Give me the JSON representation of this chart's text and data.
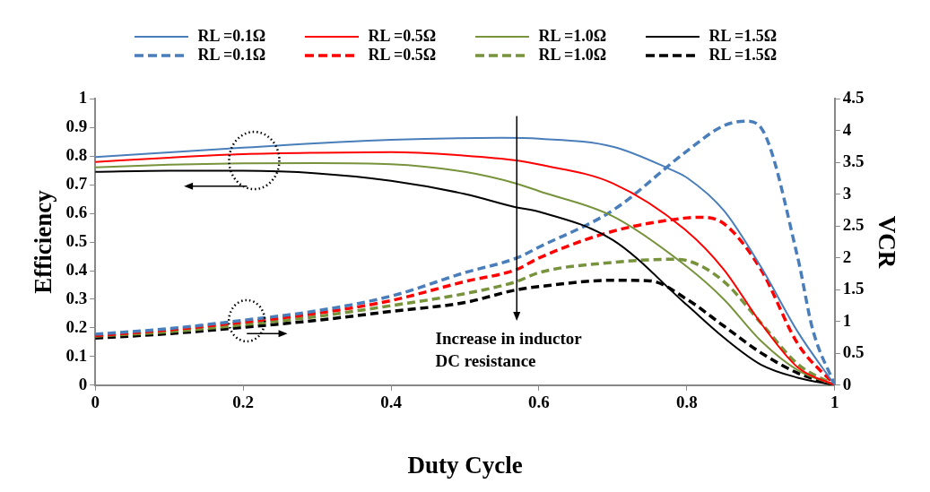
{
  "chart_data": {
    "type": "line",
    "xlabel": "Duty Cycle",
    "ylabel": "Efficiency",
    "y2label": "VCR",
    "xlim": [
      0,
      1
    ],
    "xticks": [
      0,
      0.2,
      0.4,
      0.6,
      0.8,
      1
    ],
    "ylim": [
      0,
      1
    ],
    "yticks": [
      0,
      0.1,
      0.2,
      0.3,
      0.4,
      0.5,
      0.6,
      0.7,
      0.8,
      0.9,
      1
    ],
    "y2lim": [
      0,
      4.5
    ],
    "y2ticks": [
      0,
      0.5,
      1,
      1.5,
      2,
      2.5,
      3,
      3.5,
      4,
      4.5
    ],
    "grid": false,
    "legend": "top",
    "marker": "none",
    "annotations": [
      "Increase in inductor DC resistance"
    ],
    "series": [
      {
        "name": "RL =0.1Ω",
        "color": "#4a7ebb",
        "line_style": "solid",
        "x": [
          0,
          0.2,
          0.4,
          0.55,
          0.6,
          0.7,
          0.776,
          0.8,
          0.85,
          0.9,
          0.95,
          1
        ],
        "values": [
          0.797,
          0.83,
          0.857,
          0.864,
          0.861,
          0.833,
          0.756,
          0.725,
          0.61,
          0.414,
          0.186,
          0
        ]
      },
      {
        "name": "RL =0.5Ω",
        "color": "#ff0000",
        "line_style": "solid",
        "x": [
          0,
          0.1,
          0.2,
          0.3,
          0.4,
          0.5,
          0.57,
          0.6,
          0.7,
          0.8,
          0.85,
          0.9,
          0.95,
          1
        ],
        "values": [
          0.78,
          0.795,
          0.807,
          0.812,
          0.814,
          0.802,
          0.785,
          0.771,
          0.705,
          0.538,
          0.404,
          0.217,
          0.062,
          0
        ]
      },
      {
        "name": "RL =1.0Ω",
        "color": "#77933c",
        "line_style": "solid",
        "x": [
          0,
          0.1,
          0.2,
          0.3,
          0.4,
          0.5,
          0.57,
          0.6,
          0.7,
          0.8,
          0.85,
          0.9,
          0.95,
          1
        ],
        "values": [
          0.761,
          0.77,
          0.775,
          0.776,
          0.772,
          0.745,
          0.704,
          0.678,
          0.59,
          0.414,
          0.3,
          0.155,
          0.052,
          0
        ]
      },
      {
        "name": "RL =1.5Ω",
        "color": "#000000",
        "line_style": "solid",
        "x": [
          0,
          0.1,
          0.2,
          0.3,
          0.4,
          0.5,
          0.57,
          0.6,
          0.7,
          0.8,
          0.85,
          0.9,
          0.95,
          1
        ],
        "values": [
          0.745,
          0.749,
          0.749,
          0.74,
          0.714,
          0.668,
          0.621,
          0.606,
          0.507,
          0.28,
          0.166,
          0.072,
          0.026,
          0
        ]
      },
      {
        "name": "RL =0.1Ω",
        "color": "#4a7ebb",
        "line_style": "dashed",
        "axis": "y2",
        "x": [
          0,
          0.1,
          0.2,
          0.3,
          0.4,
          0.5,
          0.57,
          0.6,
          0.7,
          0.8,
          0.85,
          0.88,
          0.9,
          0.95,
          0.97,
          1
        ],
        "values": [
          0.8,
          0.89,
          1.02,
          1.17,
          1.4,
          1.77,
          2,
          2.17,
          2.75,
          3.68,
          4.08,
          4.15,
          4.05,
          2,
          0.88,
          0
        ]
      },
      {
        "name": "RL =0.5Ω",
        "color": "#ff0000",
        "line_style": "dashed",
        "axis": "y2",
        "x": [
          0,
          0.1,
          0.2,
          0.3,
          0.4,
          0.5,
          0.57,
          0.6,
          0.7,
          0.8,
          0.82,
          0.85,
          0.9,
          0.95,
          1
        ],
        "values": [
          0.78,
          0.87,
          0.99,
          1.13,
          1.33,
          1.63,
          1.82,
          2,
          2.42,
          2.63,
          2.64,
          2.54,
          1.82,
          0.65,
          0
        ]
      },
      {
        "name": "RL =1.0Ω",
        "color": "#77933c",
        "line_style": "dashed",
        "axis": "y2",
        "x": [
          0,
          0.1,
          0.2,
          0.3,
          0.4,
          0.5,
          0.57,
          0.6,
          0.7,
          0.78,
          0.8,
          0.85,
          0.9,
          0.95,
          1
        ],
        "values": [
          0.77,
          0.84,
          0.95,
          1.08,
          1.25,
          1.44,
          1.63,
          1.77,
          1.93,
          1.98,
          1.96,
          1.63,
          0.98,
          0.33,
          0
        ]
      },
      {
        "name": "RL =1.5Ω",
        "color": "#000000",
        "line_style": "dashed",
        "axis": "y2",
        "x": [
          0,
          0.1,
          0.2,
          0.3,
          0.4,
          0.5,
          0.57,
          0.6,
          0.7,
          0.75,
          0.8,
          0.85,
          0.9,
          0.95,
          1
        ],
        "values": [
          0.74,
          0.81,
          0.91,
          1.02,
          1.16,
          1.3,
          1.5,
          1.55,
          1.65,
          1.64,
          1.35,
          0.93,
          0.51,
          0.19,
          0
        ]
      }
    ]
  }
}
